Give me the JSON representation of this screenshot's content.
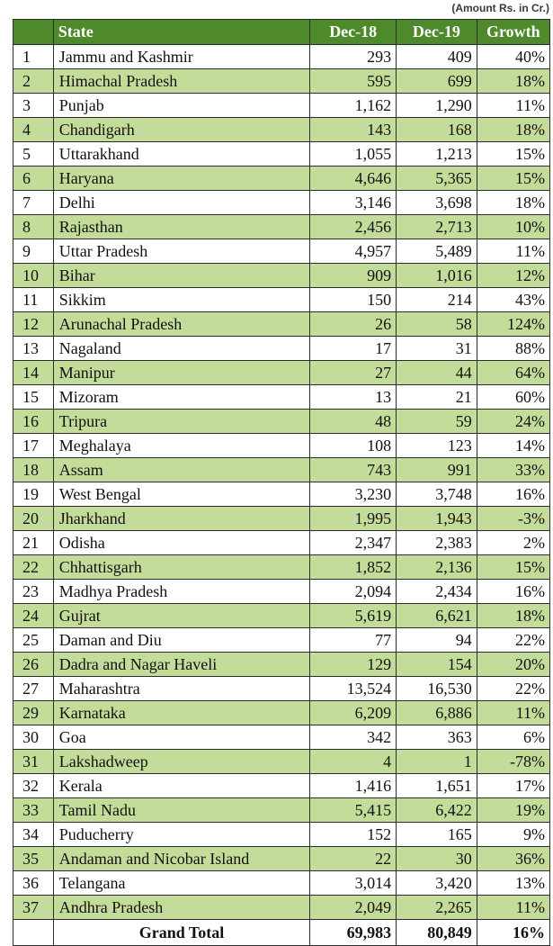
{
  "note": "(Amount Rs. in Cr.)",
  "headers": {
    "sn": "",
    "state": "State",
    "dec18": "Dec-18",
    "dec19": "Dec-19",
    "growth": "Growth"
  },
  "rows": [
    {
      "sn": "1",
      "state": "Jammu and Kashmir",
      "dec18": "293",
      "dec19": "409",
      "growth": "40%"
    },
    {
      "sn": "2",
      "state": "Himachal Pradesh",
      "dec18": "595",
      "dec19": "699",
      "growth": "18%"
    },
    {
      "sn": "3",
      "state": "Punjab",
      "dec18": "1,162",
      "dec19": "1,290",
      "growth": "11%"
    },
    {
      "sn": "4",
      "state": "Chandigarh",
      "dec18": "143",
      "dec19": "168",
      "growth": "18%"
    },
    {
      "sn": "5",
      "state": "Uttarakhand",
      "dec18": "1,055",
      "dec19": "1,213",
      "growth": "15%"
    },
    {
      "sn": "6",
      "state": "Haryana",
      "dec18": "4,646",
      "dec19": "5,365",
      "growth": "15%"
    },
    {
      "sn": "7",
      "state": "Delhi",
      "dec18": "3,146",
      "dec19": "3,698",
      "growth": "18%"
    },
    {
      "sn": "8",
      "state": "Rajasthan",
      "dec18": "2,456",
      "dec19": "2,713",
      "growth": "10%"
    },
    {
      "sn": "9",
      "state": "Uttar Pradesh",
      "dec18": "4,957",
      "dec19": "5,489",
      "growth": "11%"
    },
    {
      "sn": "10",
      "state": "Bihar",
      "dec18": "909",
      "dec19": "1,016",
      "growth": "12%"
    },
    {
      "sn": "11",
      "state": "Sikkim",
      "dec18": "150",
      "dec19": "214",
      "growth": "43%"
    },
    {
      "sn": "12",
      "state": "Arunachal Pradesh",
      "dec18": "26",
      "dec19": "58",
      "growth": "124%"
    },
    {
      "sn": "13",
      "state": "Nagaland",
      "dec18": "17",
      "dec19": "31",
      "growth": "88%"
    },
    {
      "sn": "14",
      "state": "Manipur",
      "dec18": "27",
      "dec19": "44",
      "growth": "64%"
    },
    {
      "sn": "15",
      "state": "Mizoram",
      "dec18": "13",
      "dec19": "21",
      "growth": "60%"
    },
    {
      "sn": "16",
      "state": "Tripura",
      "dec18": "48",
      "dec19": "59",
      "growth": "24%"
    },
    {
      "sn": "17",
      "state": "Meghalaya",
      "dec18": "108",
      "dec19": "123",
      "growth": "14%"
    },
    {
      "sn": "18",
      "state": "Assam",
      "dec18": "743",
      "dec19": "991",
      "growth": "33%"
    },
    {
      "sn": "19",
      "state": "West Bengal",
      "dec18": "3,230",
      "dec19": "3,748",
      "growth": "16%"
    },
    {
      "sn": "20",
      "state": "Jharkhand",
      "dec18": "1,995",
      "dec19": "1,943",
      "growth": "-3%"
    },
    {
      "sn": "21",
      "state": "Odisha",
      "dec18": "2,347",
      "dec19": "2,383",
      "growth": "2%"
    },
    {
      "sn": "22",
      "state": "Chhattisgarh",
      "dec18": "1,852",
      "dec19": "2,136",
      "growth": "15%"
    },
    {
      "sn": "23",
      "state": "Madhya Pradesh",
      "dec18": "2,094",
      "dec19": "2,434",
      "growth": "16%"
    },
    {
      "sn": "24",
      "state": "Gujrat",
      "dec18": "5,619",
      "dec19": "6,621",
      "growth": "18%"
    },
    {
      "sn": "25",
      "state": "Daman and Diu",
      "dec18": "77",
      "dec19": "94",
      "growth": "22%"
    },
    {
      "sn": "26",
      "state": "Dadra and Nagar Haveli",
      "dec18": "129",
      "dec19": "154",
      "growth": "20%"
    },
    {
      "sn": "27",
      "state": "Maharashtra",
      "dec18": "13,524",
      "dec19": "16,530",
      "growth": "22%"
    },
    {
      "sn": "29",
      "state": "Karnataka",
      "dec18": "6,209",
      "dec19": "6,886",
      "growth": "11%"
    },
    {
      "sn": "30",
      "state": "Goa",
      "dec18": "342",
      "dec19": "363",
      "growth": "6%"
    },
    {
      "sn": "31",
      "state": "Lakshadweep",
      "dec18": "4",
      "dec19": "1",
      "growth": "-78%"
    },
    {
      "sn": "32",
      "state": "Kerala",
      "dec18": "1,416",
      "dec19": "1,651",
      "growth": "17%"
    },
    {
      "sn": "33",
      "state": "Tamil Nadu",
      "dec18": "5,415",
      "dec19": "6,422",
      "growth": "19%"
    },
    {
      "sn": "34",
      "state": "Puducherry",
      "dec18": "152",
      "dec19": "165",
      "growth": "9%"
    },
    {
      "sn": "35",
      "state": "Andaman and Nicobar Island",
      "dec18": "22",
      "dec19": "30",
      "growth": "36%"
    },
    {
      "sn": "36",
      "state": "Telangana",
      "dec18": "3,014",
      "dec19": "3,420",
      "growth": "13%"
    },
    {
      "sn": "37",
      "state": "Andhra Pradesh",
      "dec18": "2,049",
      "dec19": "2,265",
      "growth": "11%"
    }
  ],
  "total": {
    "label": "Grand Total",
    "dec18": "69,983",
    "dec19": "80,849",
    "growth": "16%"
  },
  "colors": {
    "header_green": "#4e8a2c",
    "band_green": "#c4dc9a",
    "border": "#2c2c2c"
  }
}
